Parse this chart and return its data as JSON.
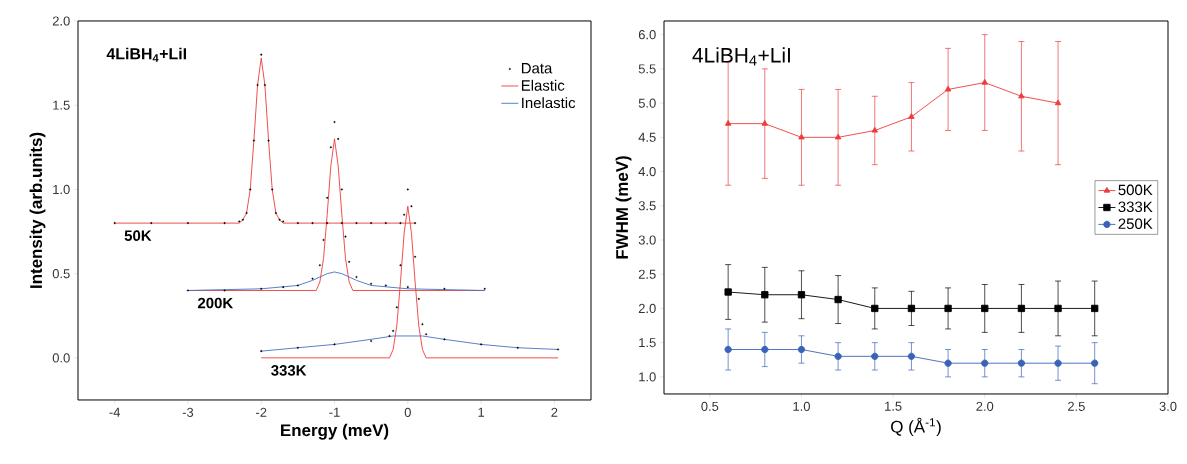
{
  "chart_data": [
    {
      "type": "line",
      "xlabel": "Energy (meV)",
      "ylabel": "Intensity (arb.units)",
      "xlim": [
        -4.5,
        2.5
      ],
      "ylim": [
        -0.25,
        2.0
      ],
      "xticks": [
        -4,
        -3,
        -2,
        -1,
        0,
        1,
        2
      ],
      "yticks": [
        {
          "value": 0,
          "label": "0.0"
        },
        {
          "value": 0.5,
          "label": "0.5"
        },
        {
          "value": 1,
          "label": "1.0"
        },
        {
          "value": 1.5,
          "label": "1.5"
        },
        {
          "value": 2,
          "label": "2.0"
        }
      ],
      "legend": "top right",
      "grid": false,
      "annotations": [
        "4LiBH$_{4}$+LiI",
        {
          "text": "50K",
          "x": -3.9,
          "y": 0.8
        },
        {
          "text": "200K",
          "x": -2.9,
          "y": 0.4
        },
        {
          "text": "333K",
          "x": -1.9,
          "y": 0.0
        }
      ],
      "series": [
        {
          "name": "Data",
          "type": "scatter",
          "marker": "circle",
          "color": "#000000",
          "x": [
            -4,
            -3.5,
            -3,
            -2.5,
            -2.3,
            -2.25,
            -2.2,
            -2.15,
            -2.1,
            -2.05,
            -2,
            -1.95,
            -1.9,
            -1.85,
            -1.8,
            -1.75,
            -1.7,
            -1.5,
            -1.3,
            -1.1,
            -0.9,
            -0.7,
            -0.5,
            -0.3,
            -0.1,
            0.1
          ],
          "values": [
            0.8,
            0.8,
            0.8,
            0.8,
            0.81,
            0.82,
            0.86,
            1.0,
            1.29,
            1.62,
            1.8,
            1.62,
            1.29,
            1.0,
            0.86,
            0.82,
            0.81,
            0.8,
            0.8,
            0.8,
            0.8,
            0.8,
            0.8,
            0.8,
            0.8,
            0.8
          ]
        },
        {
          "name": "Elastic",
          "type": "line",
          "color": "#ee3b3b",
          "x": [
            -4,
            -2.3,
            -2.25,
            -2.2,
            -2.15,
            -2.1,
            -2.05,
            -2,
            -1.95,
            -1.9,
            -1.85,
            -1.8,
            -1.75,
            -1.7,
            0.1
          ],
          "values": [
            0.8,
            0.8,
            0.82,
            0.86,
            1.0,
            1.29,
            1.62,
            1.78,
            1.62,
            1.29,
            1.0,
            0.86,
            0.82,
            0.8,
            0.8
          ]
        },
        {
          "type": "scatter",
          "marker": "circle",
          "color": "#000000",
          "x": [
            -3,
            -2.5,
            -2,
            -1.7,
            -1.5,
            -1.3,
            -1.2,
            -1.15,
            -1.1,
            -1.05,
            -1,
            -0.95,
            -0.9,
            -0.85,
            -0.8,
            -0.7,
            -0.5,
            -0.3,
            0,
            0.5,
            1.05
          ],
          "values": [
            0.4,
            0.4,
            0.41,
            0.42,
            0.43,
            0.47,
            0.55,
            0.7,
            0.95,
            1.25,
            1.4,
            1.3,
            1.0,
            0.72,
            0.57,
            0.48,
            0.44,
            0.43,
            0.42,
            0.41,
            0.41
          ]
        },
        {
          "type": "line",
          "color": "#ee3b3b",
          "x": [
            -3,
            -1.25,
            -1.2,
            -1.15,
            -1.1,
            -1.05,
            -1,
            -0.95,
            -0.9,
            -0.85,
            -0.8,
            -0.75,
            1.05
          ],
          "values": [
            0.4,
            0.4,
            0.45,
            0.59,
            0.85,
            1.14,
            1.3,
            1.14,
            0.85,
            0.59,
            0.45,
            0.4,
            0.4
          ]
        },
        {
          "name": "Inelastic",
          "type": "line",
          "color": "#4472c4",
          "x": [
            -3,
            -2,
            -1.5,
            -1.3,
            -1.2,
            -1.1,
            -1,
            -0.9,
            -0.8,
            -0.7,
            -0.5,
            0,
            1.05
          ],
          "values": [
            0.4,
            0.41,
            0.43,
            0.46,
            0.48,
            0.5,
            0.51,
            0.5,
            0.48,
            0.46,
            0.43,
            0.41,
            0.4
          ]
        },
        {
          "type": "scatter",
          "marker": "circle",
          "color": "#000000",
          "x": [
            -2,
            -1.5,
            -1,
            -0.5,
            -0.25,
            -0.2,
            -0.15,
            -0.1,
            -0.05,
            0,
            0.05,
            0.1,
            0.15,
            0.2,
            0.25,
            0.5,
            1,
            1.5,
            2.05
          ],
          "values": [
            0.04,
            0.06,
            0.08,
            0.1,
            0.13,
            0.16,
            0.3,
            0.55,
            0.85,
            1.0,
            0.9,
            0.6,
            0.35,
            0.2,
            0.14,
            0.11,
            0.08,
            0.06,
            0.05
          ]
        },
        {
          "type": "line",
          "color": "#4472c4",
          "x": [
            -2,
            -1.5,
            -1,
            -0.5,
            -0.2,
            0.2,
            0.5,
            1,
            1.5,
            2.05
          ],
          "values": [
            0.04,
            0.06,
            0.08,
            0.11,
            0.13,
            0.13,
            0.11,
            0.08,
            0.06,
            0.05
          ]
        },
        {
          "type": "line",
          "color": "#ee3b3b",
          "x": [
            -2,
            -0.25,
            -0.2,
            -0.15,
            -0.1,
            -0.05,
            0,
            0.05,
            0.1,
            0.15,
            0.2,
            0.25,
            2.05
          ],
          "values": [
            0,
            0,
            0.05,
            0.19,
            0.45,
            0.74,
            0.9,
            0.74,
            0.45,
            0.19,
            0.05,
            0,
            0
          ]
        }
      ]
    },
    {
      "type": "line",
      "xlabel": "Q (Å$^{-1}$)",
      "ylabel": "FWHM (meV)",
      "xlim": [
        0.25,
        3.0
      ],
      "ylim": [
        0.75,
        6.2
      ],
      "xticks": [
        0.5,
        {
          "value": 1,
          "label": "1.0"
        },
        1.5,
        {
          "value": 2,
          "label": "2.0"
        },
        2.5,
        {
          "value": 3,
          "label": "3.0"
        }
      ],
      "yticks": [
        {
          "value": 1,
          "label": "1.0"
        },
        1.5,
        {
          "value": 2,
          "label": "2.0"
        },
        2.5,
        {
          "value": 3,
          "label": "3.0"
        },
        3.5,
        {
          "value": 4,
          "label": "4.0"
        },
        4.5,
        {
          "value": 5,
          "label": "5.0"
        },
        5.5,
        {
          "value": 6,
          "label": "6.0"
        }
      ],
      "legend": "right",
      "grid": false,
      "annotations": [
        "4LiBH$_{4}$+LiI"
      ],
      "series": [
        {
          "name": "500K",
          "color": "#ee3b3b",
          "marker": "triangle",
          "x": [
            0.6,
            0.8,
            1.0,
            1.2,
            1.4,
            1.6,
            1.8,
            2.0,
            2.2,
            2.4
          ],
          "values": [
            4.7,
            4.7,
            4.5,
            4.5,
            4.6,
            4.8,
            5.2,
            5.3,
            5.1,
            5.0
          ],
          "errors": [
            [
              3.8,
              5.6
            ],
            [
              3.9,
              5.5
            ],
            [
              3.8,
              5.2
            ],
            [
              3.8,
              5.2
            ],
            [
              4.1,
              5.1
            ],
            [
              4.3,
              5.3
            ],
            [
              4.6,
              5.8
            ],
            [
              4.6,
              6.0
            ],
            [
              4.3,
              5.9
            ],
            [
              4.1,
              5.9
            ]
          ]
        },
        {
          "name": "333K",
          "color": "#000000",
          "marker": "square",
          "x": [
            0.6,
            0.8,
            1.0,
            1.2,
            1.4,
            1.6,
            1.8,
            2.0,
            2.2,
            2.4,
            2.6
          ],
          "values": [
            2.24,
            2.2,
            2.2,
            2.13,
            2.0,
            2.0,
            2.0,
            2.0,
            2.0,
            2.0,
            2.0
          ],
          "errors": [
            [
              1.84,
              2.64
            ],
            [
              1.8,
              2.6
            ],
            [
              1.85,
              2.55
            ],
            [
              1.78,
              2.48
            ],
            [
              1.7,
              2.3
            ],
            [
              1.75,
              2.25
            ],
            [
              1.7,
              2.3
            ],
            [
              1.65,
              2.35
            ],
            [
              1.65,
              2.35
            ],
            [
              1.6,
              2.4
            ],
            [
              1.6,
              2.4
            ]
          ]
        },
        {
          "name": "250K",
          "color": "#3a63b8",
          "marker": "circle",
          "x": [
            0.6,
            0.8,
            1.0,
            1.2,
            1.4,
            1.6,
            1.8,
            2.0,
            2.2,
            2.4,
            2.6
          ],
          "values": [
            1.4,
            1.4,
            1.4,
            1.3,
            1.3,
            1.3,
            1.2,
            1.2,
            1.2,
            1.2,
            1.2
          ],
          "errors": [
            [
              1.1,
              1.7
            ],
            [
              1.15,
              1.65
            ],
            [
              1.2,
              1.6
            ],
            [
              1.1,
              1.5
            ],
            [
              1.1,
              1.5
            ],
            [
              1.1,
              1.5
            ],
            [
              1.0,
              1.4
            ],
            [
              1.0,
              1.4
            ],
            [
              1.0,
              1.4
            ],
            [
              0.95,
              1.45
            ],
            [
              0.9,
              1.5
            ]
          ]
        }
      ]
    }
  ]
}
